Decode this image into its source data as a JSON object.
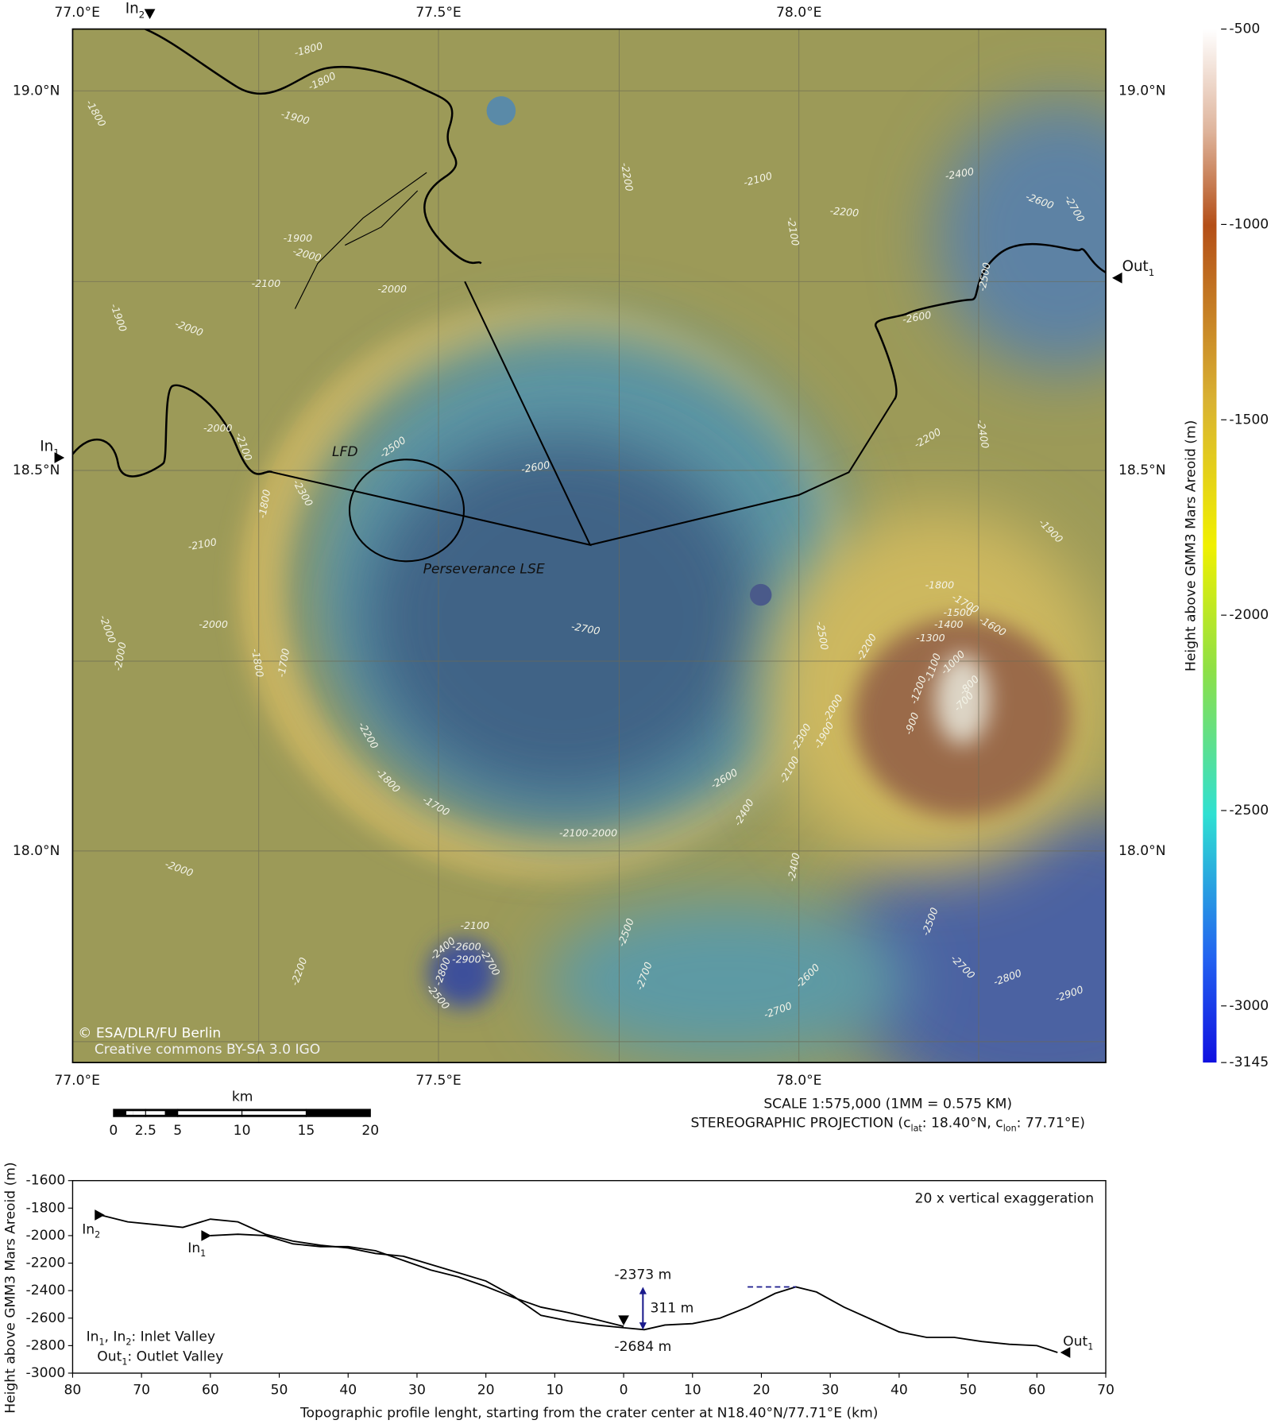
{
  "map": {
    "lon_ticks": [
      "77.0°E",
      "77.5°E",
      "78.0°E"
    ],
    "lat_ticks": [
      "19.0°N",
      "18.5°N",
      "18.0°N"
    ],
    "contour_labels": [
      -1800,
      -1800,
      -1800,
      -1900,
      -2200,
      -2100,
      -2400,
      -2600,
      -2700,
      -2200,
      -2100,
      -1900,
      -2000,
      -2100,
      -2000,
      -2500,
      -1900,
      -2000,
      -2600,
      -2000,
      -2200,
      -2400,
      -2100,
      -2500,
      -2600,
      -2300,
      -1800,
      -1900,
      -2100,
      -1800,
      -1700,
      -1600,
      -1500,
      -1400,
      -1300,
      -2000,
      -2000,
      -2500,
      -2700,
      -2200,
      -1000,
      -1100,
      -800,
      -1200,
      -700,
      -1700,
      -1800,
      -2000,
      -2000,
      -900,
      -1900,
      -2200,
      -2300,
      -2100,
      -2600,
      -2400,
      -1800,
      -1700,
      -2100,
      -2000,
      -2000,
      -2400,
      -2100,
      -2400,
      -2600,
      -2900,
      -2700,
      -2800,
      -2500,
      -2200,
      -2500,
      -2500,
      -2700,
      -2700,
      -2800,
      -2600,
      -2900,
      -2700
    ],
    "labels": {
      "lfd": "LFD",
      "landing": "Perseverance LSE",
      "copyright": "© ESA/DLR/FU Berlin",
      "license": "Creative commons BY-SA 3.0 IGO",
      "in1": [
        "In",
        "1"
      ],
      "in2": [
        "In",
        "2"
      ],
      "out1": [
        "Out",
        "1"
      ]
    },
    "scale_bar": {
      "title": "km",
      "ticks": [
        0,
        2.5,
        5,
        10,
        15,
        20
      ]
    },
    "scale_text": "SCALE 1:575,000 (1MM = 0.575 KM)",
    "projection_text": [
      "STEREOGRAPHIC PROJECTION (c",
      "lat",
      ": 18.40°N, c",
      "lon",
      ": 77.71°E)"
    ]
  },
  "colorbar": {
    "label": "Height above GMM3 Mars Areoid (m)",
    "lim": [
      -500,
      -3145
    ],
    "ticks": [
      -500,
      -1000,
      -1500,
      -2000,
      -2500,
      -3000,
      -3145
    ]
  },
  "chart_data": {
    "type": "line",
    "ylabel": "Height above GMM3 Mars Areoid (m)",
    "xlabel": "Topographic profile lenght, starting from the crater center at N18.40°N/77.71°E (km)",
    "xlim": [
      -80,
      70
    ],
    "xticks": [
      {
        "value": -80,
        "label": "80"
      },
      {
        "value": -70,
        "label": "70"
      },
      {
        "value": -60,
        "label": "60"
      },
      {
        "value": -50,
        "label": "50"
      },
      {
        "value": -40,
        "label": "40"
      },
      {
        "value": -30,
        "label": "30"
      },
      {
        "value": -20,
        "label": "20"
      },
      {
        "value": -10,
        "label": "10"
      },
      0,
      10,
      20,
      30,
      40,
      50,
      60,
      70
    ],
    "ylim": [
      -3000,
      -1600
    ],
    "yticks": [
      -1600,
      -1800,
      -2000,
      -2200,
      -2400,
      -2600,
      -2800,
      -3000
    ],
    "series": [
      {
        "color": "#000000",
        "x": [
          -76,
          -72,
          -68,
          -64,
          -60,
          -56,
          -52,
          -48,
          -44,
          -40,
          -36,
          -32,
          -28,
          -24,
          -20,
          -16,
          -12,
          -8,
          -4,
          0
        ],
        "values": [
          -1850,
          -1900,
          -1920,
          -1940,
          -1880,
          -1900,
          -1990,
          -2040,
          -2070,
          -2090,
          -2130,
          -2150,
          -2210,
          -2270,
          -2330,
          -2440,
          -2580,
          -2620,
          -2650,
          -2670
        ]
      },
      {
        "color": "#000000",
        "x": [
          -60,
          -56,
          -52,
          -48,
          -44,
          -40,
          -36,
          -32,
          -28,
          -24,
          -20,
          -16,
          -12,
          -8,
          -4,
          0
        ],
        "values": [
          -2000,
          -1990,
          -2000,
          -2060,
          -2080,
          -2080,
          -2110,
          -2180,
          -2250,
          -2300,
          -2370,
          -2450,
          -2520,
          -2560,
          -2610,
          -2660
        ]
      },
      {
        "color": "#000000",
        "x": [
          0,
          3,
          6,
          10,
          14,
          18,
          22,
          25,
          28,
          32,
          36,
          40,
          44,
          48,
          52,
          56,
          60,
          63
        ],
        "values": [
          -2670,
          -2684,
          -2650,
          -2640,
          -2600,
          -2520,
          -2420,
          -2373,
          -2410,
          -2520,
          -2610,
          -2700,
          -2740,
          -2740,
          -2770,
          -2790,
          -2800,
          -2850
        ]
      }
    ],
    "annotations": {
      "upper": {
        "value": -2373,
        "label": "-2373 m"
      },
      "lower": {
        "value": -2684,
        "label": "-2684 m"
      },
      "difference": {
        "value": 311,
        "label": "311 m"
      }
    },
    "exaggeration": "20 x vertical exaggeration",
    "legend_inlet": [
      "In",
      "1",
      ", In",
      "2",
      ": Inlet Valley"
    ],
    "legend_outlet": [
      "Out",
      "1",
      ": Outlet Valley"
    ],
    "markers": {
      "in1": [
        "In",
        "1"
      ],
      "in2": [
        "In",
        "2"
      ],
      "out1": [
        "Out",
        "1"
      ]
    }
  }
}
